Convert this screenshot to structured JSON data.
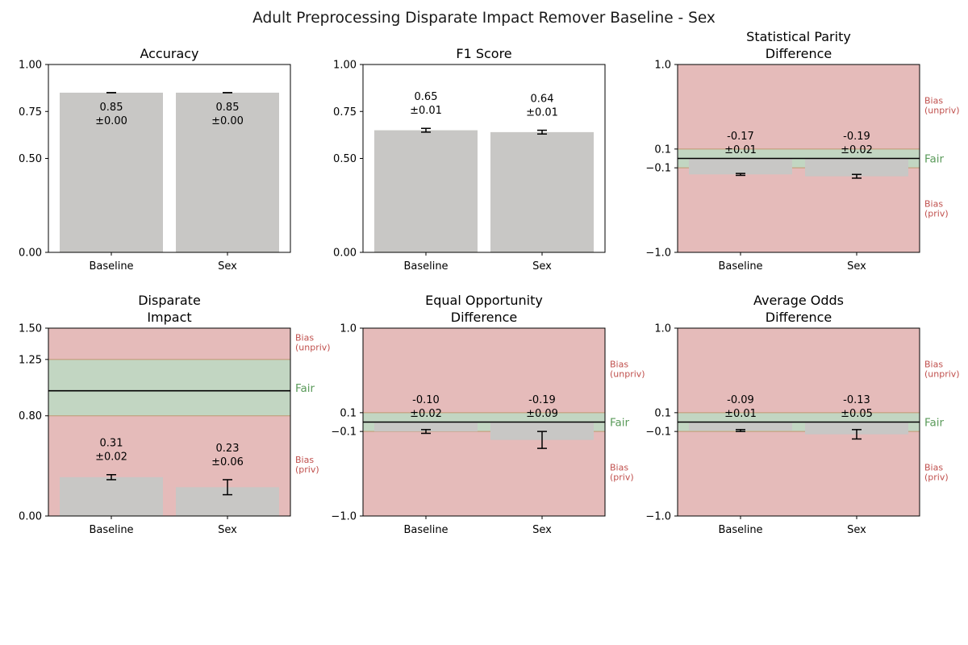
{
  "title": "Adult Preprocessing Disparate Impact Remover Baseline - Sex",
  "colors": {
    "bar": "#c8c7c5",
    "bias_region": "#e5bbba",
    "fair_region": "#c2d6c2",
    "band_edge": "#c09872",
    "fair_label": "#5a9a5a",
    "bias_label": "#c0504d",
    "axis": "#000000"
  },
  "chart_data": [
    {
      "type": "bar",
      "title": "Accuracy",
      "categories": [
        "Baseline",
        "Sex"
      ],
      "values": [
        0.85,
        0.85
      ],
      "errors": [
        0.0,
        0.0
      ],
      "labels": [
        "0.85\n±0.00",
        "0.85\n±0.00"
      ],
      "ylim": [
        0,
        1
      ],
      "yticks": [
        0,
        0.5,
        0.75,
        1.0
      ],
      "ytick_labels": [
        "0.00",
        "0.50",
        "0.75",
        "1.00"
      ],
      "ref_line": null,
      "fair_band": null
    },
    {
      "type": "bar",
      "title": "F1 Score",
      "categories": [
        "Baseline",
        "Sex"
      ],
      "values": [
        0.65,
        0.64
      ],
      "errors": [
        0.01,
        0.01
      ],
      "labels": [
        "0.65\n±0.01",
        "0.64\n±0.01"
      ],
      "ylim": [
        0,
        1
      ],
      "yticks": [
        0,
        0.5,
        0.75,
        1.0
      ],
      "ytick_labels": [
        "0.00",
        "0.50",
        "0.75",
        "1.00"
      ],
      "ref_line": null,
      "fair_band": null
    },
    {
      "type": "bar",
      "title": "Statistical Parity\nDifference",
      "categories": [
        "Baseline",
        "Sex"
      ],
      "values": [
        -0.17,
        -0.19
      ],
      "errors": [
        0.01,
        0.02
      ],
      "labels": [
        "-0.17\n±0.01",
        "-0.19\n±0.02"
      ],
      "ylim": [
        -1,
        1
      ],
      "yticks": [
        -1,
        -0.1,
        0.1,
        1
      ],
      "ytick_labels": [
        "−1.0",
        "−0.1",
        "0.1",
        "1.0"
      ],
      "ref_line": 0,
      "fair_band": [
        -0.1,
        0.1
      ],
      "region_labels": {
        "upper": "Bias\n(unpriv)",
        "fair": "Fair",
        "lower": "Bias\n(priv)"
      }
    },
    {
      "type": "bar",
      "title": "Disparate\nImpact",
      "categories": [
        "Baseline",
        "Sex"
      ],
      "values": [
        0.31,
        0.23
      ],
      "errors": [
        0.02,
        0.06
      ],
      "labels": [
        "0.31\n±0.02",
        "0.23\n±0.06"
      ],
      "ylim": [
        0,
        1.5
      ],
      "yticks": [
        0,
        0.8,
        1.25,
        1.5
      ],
      "ytick_labels": [
        "0.00",
        "0.80",
        "1.25",
        "1.50"
      ],
      "ref_line": 1.0,
      "fair_band": [
        0.8,
        1.25
      ],
      "region_labels": {
        "upper": "Bias\n(unpriv)",
        "fair": "Fair",
        "lower": "Bias\n(priv)"
      }
    },
    {
      "type": "bar",
      "title": "Equal Opportunity\nDifference",
      "categories": [
        "Baseline",
        "Sex"
      ],
      "values": [
        -0.1,
        -0.19
      ],
      "errors": [
        0.02,
        0.09
      ],
      "labels": [
        "-0.10\n±0.02",
        "-0.19\n±0.09"
      ],
      "ylim": [
        -1,
        1
      ],
      "yticks": [
        -1,
        -0.1,
        0.1,
        1
      ],
      "ytick_labels": [
        "−1.0",
        "−0.1",
        "0.1",
        "1.0"
      ],
      "ref_line": 0,
      "fair_band": [
        -0.1,
        0.1
      ],
      "region_labels": {
        "upper": "Bias\n(unpriv)",
        "fair": "Fair",
        "lower": "Bias\n(priv)"
      }
    },
    {
      "type": "bar",
      "title": "Average Odds\nDifference",
      "categories": [
        "Baseline",
        "Sex"
      ],
      "values": [
        -0.09,
        -0.13
      ],
      "errors": [
        0.01,
        0.05
      ],
      "labels": [
        "-0.09\n±0.01",
        "-0.13\n±0.05"
      ],
      "ylim": [
        -1,
        1
      ],
      "yticks": [
        -1,
        -0.1,
        0.1,
        1
      ],
      "ytick_labels": [
        "−1.0",
        "−0.1",
        "0.1",
        "1.0"
      ],
      "ref_line": 0,
      "fair_band": [
        -0.1,
        0.1
      ],
      "region_labels": {
        "upper": "Bias\n(unpriv)",
        "fair": "Fair",
        "lower": "Bias\n(priv)"
      }
    }
  ]
}
